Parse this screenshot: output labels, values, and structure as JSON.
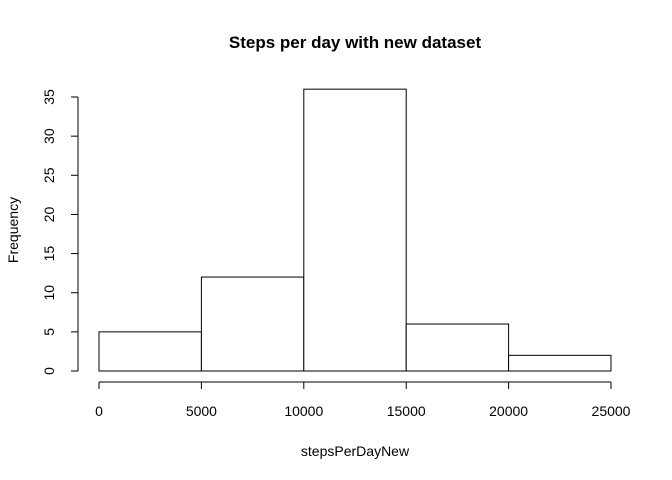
{
  "chart_data": {
    "type": "bar",
    "title": "Steps per day with new dataset",
    "xlabel": "stepsPerDayNew",
    "ylabel": "Frequency",
    "bins": [
      {
        "start": 0,
        "end": 5000,
        "value": 5
      },
      {
        "start": 5000,
        "end": 10000,
        "value": 12
      },
      {
        "start": 10000,
        "end": 15000,
        "value": 36
      },
      {
        "start": 15000,
        "end": 20000,
        "value": 6
      },
      {
        "start": 20000,
        "end": 25000,
        "value": 2
      }
    ],
    "x_ticks": [
      0,
      5000,
      10000,
      15000,
      20000,
      25000
    ],
    "y_ticks": [
      0,
      5,
      10,
      15,
      20,
      25,
      30,
      35
    ],
    "xlim": [
      0,
      25000
    ],
    "ylim": [
      0,
      35
    ],
    "grid": false,
    "colors": {
      "bar_fill": "#ffffff",
      "bar_stroke": "#000000",
      "axis": "#000000"
    }
  }
}
